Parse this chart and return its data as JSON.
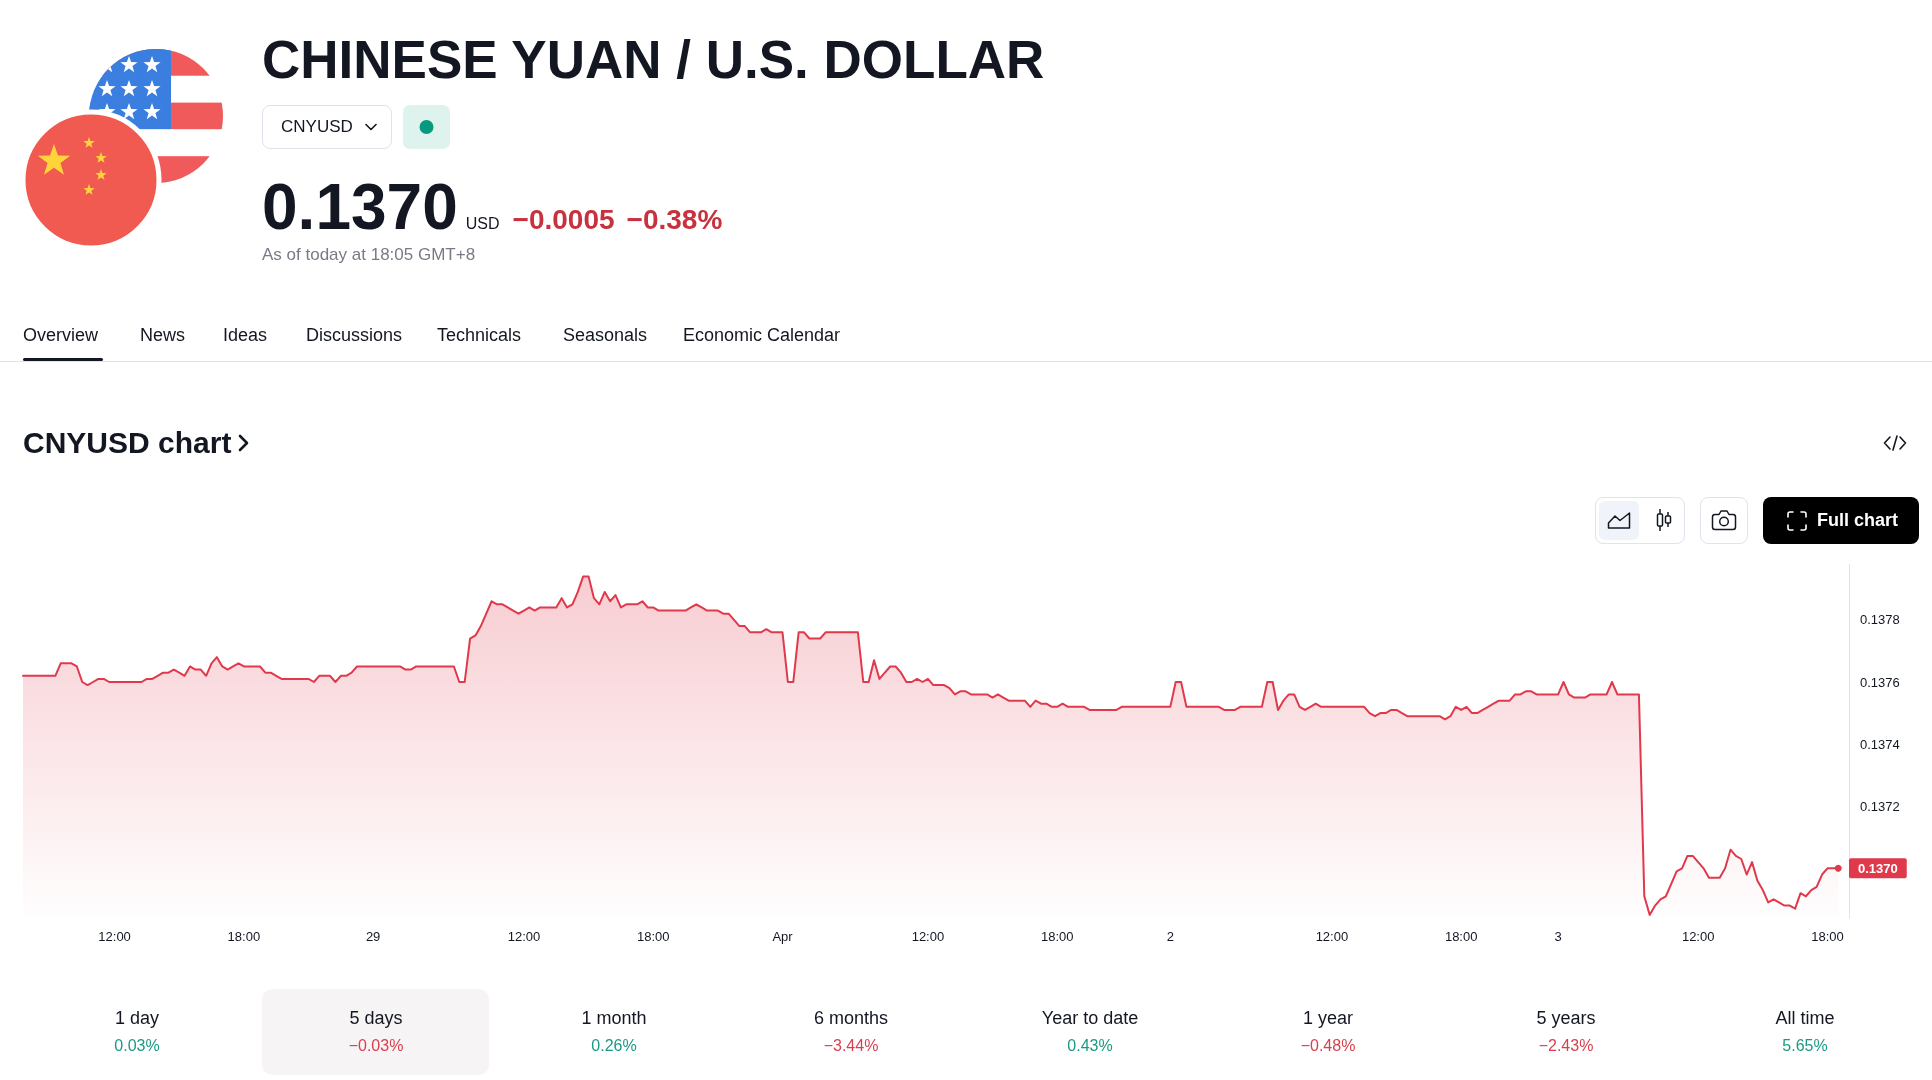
{
  "chart_data": {
    "type": "area",
    "title": "CHINESE YUAN / U.S. DOLLAR",
    "subtitle": "CNYUSD chart",
    "annotations": [
      "CNYUSD",
      "0.1370",
      "USD",
      "−0.0005",
      "−0.38%",
      "As of today at 18:05 GMT+8",
      "Overview",
      "News",
      "Ideas",
      "Discussions",
      "Technicals",
      "Seasonals",
      "Economic Calendar",
      "Full chart",
      "1 day",
      "0.03%",
      "5 days",
      "−0.03%",
      "1 month",
      "0.26%",
      "6 months",
      "−3.44%",
      "Year to date",
      "0.43%",
      "1 year",
      "−0.48%",
      "5 years",
      "−2.43%",
      "All time",
      "5.65%"
    ],
    "categories": [
      null,
      null,
      null,
      null,
      null,
      null,
      null,
      null,
      null,
      null,
      null,
      null,
      null,
      null,
      null,
      null,
      null,
      "12:00",
      null,
      null,
      null,
      null,
      null,
      null,
      null,
      null,
      null,
      null,
      null,
      null,
      null,
      null,
      null,
      null,
      null,
      null,
      null,
      null,
      null,
      null,
      null,
      "18:00",
      null,
      null,
      null,
      null,
      null,
      null,
      null,
      null,
      null,
      null,
      null,
      null,
      null,
      null,
      null,
      null,
      null,
      null,
      null,
      null,
      null,
      null,
      null,
      "29",
      null,
      null,
      null,
      null,
      null,
      null,
      null,
      null,
      null,
      null,
      null,
      null,
      null,
      null,
      null,
      null,
      null,
      null,
      null,
      null,
      null,
      null,
      null,
      null,
      null,
      null,
      null,
      "12:00",
      null,
      null,
      null,
      null,
      null,
      null,
      null,
      null,
      null,
      null,
      null,
      null,
      null,
      null,
      null,
      null,
      null,
      null,
      null,
      null,
      null,
      null,
      null,
      "18:00",
      null,
      null,
      null,
      null,
      null,
      null,
      null,
      null,
      null,
      null,
      null,
      null,
      null,
      null,
      null,
      null,
      null,
      null,
      null,
      null,
      null,
      null,
      null,
      "Apr",
      null,
      null,
      null,
      null,
      null,
      null,
      null,
      null,
      null,
      null,
      null,
      null,
      null,
      null,
      null,
      null,
      null,
      null,
      null,
      null,
      null,
      null,
      null,
      null,
      null,
      null,
      "12:00",
      null,
      null,
      null,
      null,
      null,
      null,
      null,
      null,
      null,
      null,
      null,
      null,
      null,
      null,
      null,
      null,
      null,
      null,
      null,
      null,
      null,
      null,
      null,
      "18:00",
      null,
      null,
      null,
      null,
      null,
      null,
      null,
      null,
      null,
      null,
      null,
      null,
      null,
      null,
      null,
      null,
      null,
      null,
      null,
      null,
      "2",
      null,
      null,
      null,
      null,
      null,
      null,
      null,
      null,
      null,
      null,
      null,
      null,
      null,
      null,
      null,
      null,
      null,
      null,
      null,
      null,
      null,
      null,
      null,
      null,
      null,
      null,
      null,
      null,
      null,
      "12:00",
      null,
      null,
      null,
      null,
      null,
      null,
      null,
      null,
      null,
      null,
      null,
      null,
      null,
      null,
      null,
      null,
      null,
      null,
      null,
      null,
      null,
      null,
      null,
      "18:00",
      null,
      null,
      null,
      null,
      null,
      null,
      null,
      null,
      null,
      null,
      null,
      null,
      null,
      null,
      null,
      null,
      null,
      "3",
      null,
      null,
      null,
      null,
      null,
      null,
      null,
      null,
      null,
      null,
      null,
      null,
      null,
      null,
      null,
      null,
      null,
      null,
      null,
      null,
      null,
      null,
      null,
      null,
      null,
      "12:00",
      null,
      null,
      null,
      null,
      null,
      null,
      null,
      null,
      null,
      null,
      null,
      null,
      null,
      null,
      null,
      null,
      null,
      null,
      null,
      null,
      null,
      null,
      null,
      "18:00",
      null,
      null,
      null,
      null
    ],
    "values": [
      0.13762,
      0.13762,
      0.13762,
      0.13762,
      0.13762,
      0.13762,
      0.13762,
      0.13766,
      0.13766,
      0.13766,
      0.13765,
      0.1376,
      0.13759,
      0.1376,
      0.13761,
      0.13761,
      0.1376,
      0.1376,
      0.1376,
      0.1376,
      0.1376,
      0.1376,
      0.1376,
      0.13761,
      0.13761,
      0.13762,
      0.13763,
      0.13763,
      0.13764,
      0.13763,
      0.13762,
      0.13765,
      0.13764,
      0.13764,
      0.13762,
      0.13766,
      0.13768,
      0.13765,
      0.13764,
      0.13765,
      0.13766,
      0.13765,
      0.13765,
      0.13765,
      0.13765,
      0.13763,
      0.13763,
      0.13762,
      0.13761,
      0.13761,
      0.13761,
      0.13761,
      0.13761,
      0.13761,
      0.1376,
      0.13762,
      0.13762,
      0.13762,
      0.1376,
      0.13762,
      0.13762,
      0.13763,
      0.13765,
      0.13765,
      0.13765,
      0.13765,
      0.13765,
      0.13765,
      0.13765,
      0.13765,
      0.13765,
      0.13764,
      0.13764,
      0.13765,
      0.13765,
      0.13765,
      0.13765,
      0.13765,
      0.13765,
      0.13765,
      0.13765,
      0.1376,
      0.1376,
      0.13774,
      0.13775,
      0.13778,
      0.13782,
      0.13786,
      0.13785,
      0.13785,
      0.13784,
      0.13783,
      0.13782,
      0.13783,
      0.13784,
      0.13783,
      0.13784,
      0.13784,
      0.13784,
      0.13784,
      0.13787,
      0.13784,
      0.13785,
      0.13789,
      0.13794,
      0.13794,
      0.13787,
      0.13785,
      0.13789,
      0.13786,
      0.13788,
      0.13784,
      0.13785,
      0.13785,
      0.13785,
      0.13786,
      0.13784,
      0.13784,
      0.13783,
      0.13783,
      0.13783,
      0.13783,
      0.13783,
      0.13783,
      0.13784,
      0.13785,
      0.13784,
      0.13783,
      0.13783,
      0.13783,
      0.13782,
      0.13782,
      0.1378,
      0.13778,
      0.13778,
      0.13776,
      0.13776,
      0.13776,
      0.13777,
      0.13776,
      0.13776,
      0.13776,
      0.1376,
      0.1376,
      0.13776,
      0.13776,
      0.13774,
      0.13774,
      0.13774,
      0.13776,
      0.13776,
      0.13776,
      0.13776,
      0.13776,
      0.13776,
      0.13776,
      0.1376,
      0.1376,
      0.13767,
      0.13761,
      0.13763,
      0.13765,
      0.13765,
      0.13763,
      0.1376,
      0.1376,
      0.13761,
      0.1376,
      0.13761,
      0.13759,
      0.13759,
      0.13759,
      0.13758,
      0.13756,
      0.13757,
      0.13757,
      0.13756,
      0.13756,
      0.13756,
      0.13756,
      0.13755,
      0.13756,
      0.13755,
      0.13754,
      0.13754,
      0.13754,
      0.13754,
      0.13752,
      0.13754,
      0.13753,
      0.13753,
      0.13752,
      0.13752,
      0.13753,
      0.13752,
      0.13752,
      0.13752,
      0.13752,
      0.13751,
      0.13751,
      0.13751,
      0.13751,
      0.13751,
      0.13751,
      0.13752,
      0.13752,
      0.13752,
      0.13752,
      0.13752,
      0.13752,
      0.13752,
      0.13752,
      0.13752,
      0.13752,
      0.1376,
      0.1376,
      0.13752,
      0.13752,
      0.13752,
      0.13752,
      0.13752,
      0.13752,
      0.13752,
      0.13751,
      0.13751,
      0.13751,
      0.13752,
      0.13752,
      0.13752,
      0.13752,
      0.13752,
      0.1376,
      0.1376,
      0.13751,
      0.13754,
      0.13756,
      0.13756,
      0.13752,
      0.13751,
      0.13752,
      0.13753,
      0.13752,
      0.13752,
      0.13752,
      0.13752,
      0.13752,
      0.13752,
      0.13752,
      0.13752,
      0.13752,
      0.1375,
      0.13749,
      0.1375,
      0.1375,
      0.13751,
      0.13751,
      0.1375,
      0.13749,
      0.13749,
      0.13749,
      0.13749,
      0.13749,
      0.13749,
      0.13749,
      0.13748,
      0.13749,
      0.13752,
      0.13751,
      0.13752,
      0.1375,
      0.1375,
      0.13751,
      0.13752,
      0.13753,
      0.13754,
      0.13754,
      0.13754,
      0.13756,
      0.13756,
      0.13757,
      0.13757,
      0.13756,
      0.13756,
      0.13756,
      0.13756,
      0.13756,
      0.1376,
      0.13756,
      0.13755,
      0.13755,
      0.13755,
      0.13756,
      0.13756,
      0.13756,
      0.13756,
      0.1376,
      0.13756,
      0.13756,
      0.13756,
      0.13756,
      0.13756,
      0.13691,
      0.13685,
      0.13688,
      0.1369,
      0.13691,
      0.13695,
      0.13699,
      0.137,
      0.13704,
      0.13704,
      0.13702,
      0.137,
      0.13697,
      0.13697,
      0.13697,
      0.137,
      0.13706,
      0.13704,
      0.13703,
      0.13698,
      0.13702,
      0.13696,
      0.13693,
      0.13689,
      0.1369,
      0.13689,
      0.13688,
      0.13688,
      0.13687,
      0.13692,
      0.13691,
      0.13693,
      0.13694,
      0.13698,
      0.137,
      0.137,
      0.137,
      null,
      null
    ],
    "value_labels": [
      null,
      null,
      null,
      null,
      null,
      null,
      null,
      null,
      null,
      null,
      null,
      null,
      null,
      null,
      null,
      null,
      null,
      null,
      null,
      null,
      null,
      null,
      null,
      null,
      null,
      null,
      null,
      null,
      null,
      null,
      null,
      null,
      null,
      null,
      null,
      null,
      null,
      null,
      null,
      null,
      null,
      null,
      null,
      null,
      null,
      null,
      null,
      null,
      null,
      null,
      null,
      null,
      null,
      null,
      null,
      null,
      null,
      null,
      null,
      null,
      null,
      null,
      null,
      null,
      null,
      null,
      null,
      null,
      null,
      null,
      null,
      null,
      null,
      null,
      null,
      null,
      null,
      null,
      null,
      null,
      null,
      null,
      null,
      null,
      null,
      null,
      null,
      null,
      null,
      null,
      null,
      null,
      null,
      null,
      null,
      null,
      null,
      null,
      null,
      null,
      null,
      null,
      null,
      null,
      null,
      null,
      null,
      null,
      null,
      null,
      null,
      null,
      null,
      null,
      null,
      null,
      null,
      null,
      null,
      null,
      null,
      null,
      null,
      null,
      null,
      null,
      null,
      null,
      null,
      null,
      null,
      null,
      null,
      null,
      null,
      null,
      null,
      null,
      null,
      null,
      null,
      null,
      null,
      null,
      null,
      null,
      null,
      null,
      null,
      null,
      null,
      null,
      null,
      null,
      null,
      null,
      null,
      null,
      null,
      null,
      null,
      null,
      null,
      null,
      null,
      null,
      null,
      null,
      null,
      null,
      null,
      null,
      null,
      null,
      null,
      null,
      null,
      null,
      null,
      null,
      null,
      null,
      null,
      null,
      null,
      null,
      null,
      null,
      null,
      null,
      null,
      null,
      null,
      null,
      null,
      null,
      null,
      null,
      null,
      null,
      null,
      null,
      null,
      null,
      null,
      null,
      null,
      null,
      null,
      null,
      null,
      null,
      null,
      null,
      null,
      null,
      null,
      null,
      null,
      null,
      null,
      null,
      null,
      null,
      null,
      null,
      null,
      null,
      null,
      null,
      null,
      null,
      null,
      null,
      null,
      null,
      null,
      null,
      null,
      null,
      null,
      null,
      null,
      null,
      null,
      null,
      null,
      null,
      null,
      null,
      null,
      null,
      null,
      null,
      null,
      null,
      null,
      null,
      null,
      null,
      null,
      null,
      null,
      null,
      null,
      null,
      null,
      null,
      null,
      null,
      null,
      null,
      null,
      null,
      null,
      null,
      null,
      null,
      null,
      null,
      null,
      null,
      null,
      null,
      null,
      null,
      null,
      null,
      null,
      null,
      null,
      null,
      null,
      null,
      null,
      null,
      null,
      null,
      null,
      null,
      null,
      null,
      null,
      null,
      null,
      null,
      null,
      null,
      null,
      null,
      null,
      null,
      null,
      null,
      null,
      null,
      null,
      null,
      null,
      null,
      null,
      null,
      null,
      null,
      null,
      null,
      null,
      null,
      null,
      null,
      null,
      null,
      null,
      null,
      null,
      null,
      null,
      "0.1370",
      null,
      null
    ],
    "color": "#e0394c",
    "ylim": [
      0.13684,
      0.13798
    ],
    "yticks": [
      0.1372,
      0.1374,
      0.1376,
      0.1378
    ]
  }
}
